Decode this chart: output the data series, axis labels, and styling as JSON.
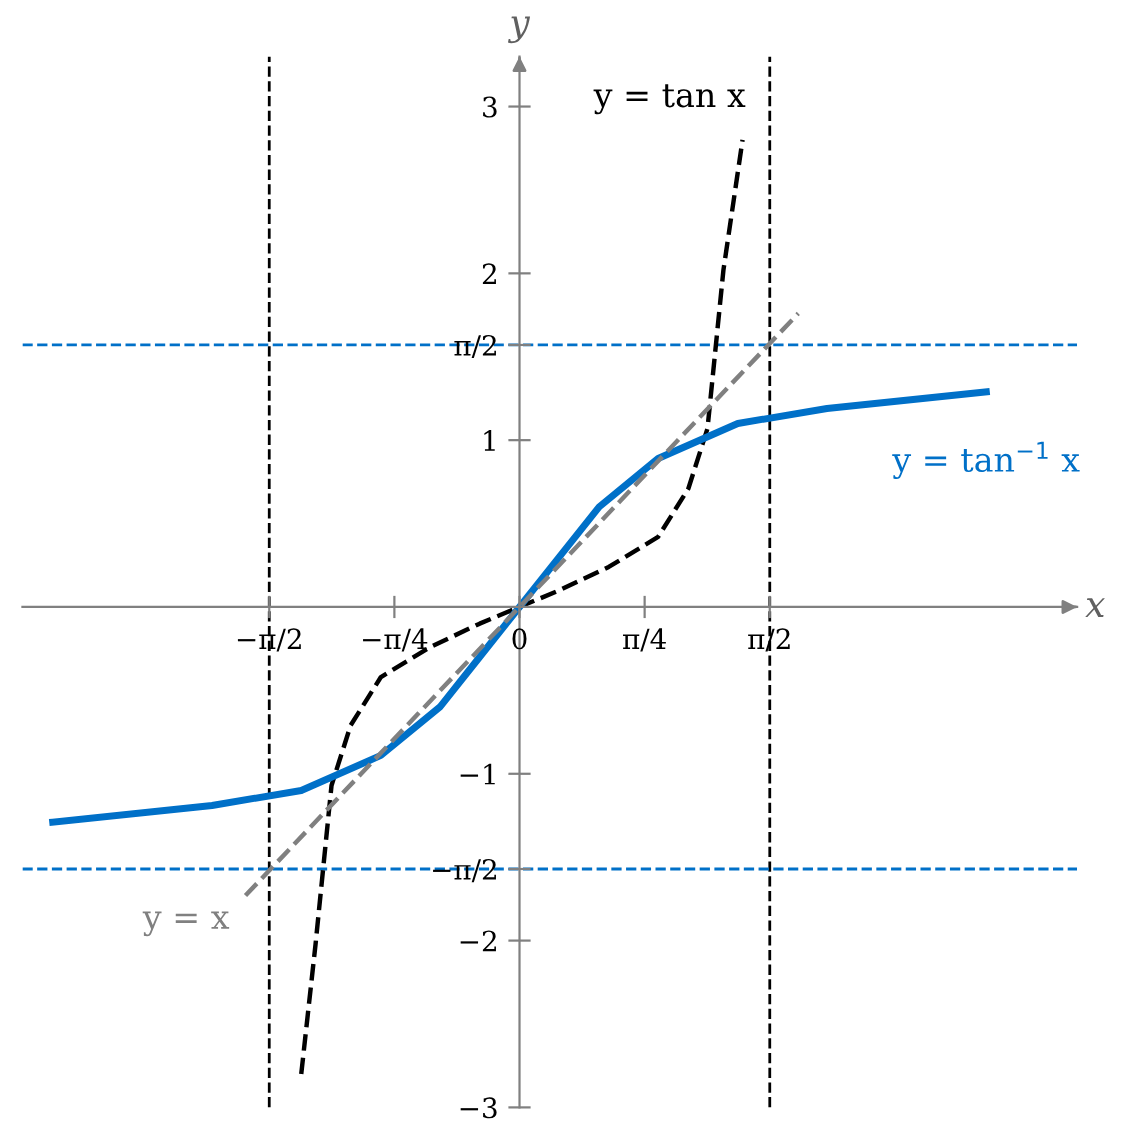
{
  "chart_data": {
    "type": "line",
    "xlabel": "x",
    "ylabel": "y",
    "xlim": [
      -3.12,
      3.5
    ],
    "ylim": [
      -3.0,
      3.3
    ],
    "xticks": [
      {
        "value": -1.5708,
        "label": "−π/2"
      },
      {
        "value": -0.7854,
        "label": "−π/4"
      },
      {
        "value": 0,
        "label": "0"
      },
      {
        "value": 0.7854,
        "label": "π/4"
      },
      {
        "value": 1.5708,
        "label": "π/2"
      }
    ],
    "yticks": [
      -3,
      -2,
      {
        "value": -1.5708,
        "label": "−π/2"
      },
      -1,
      1,
      {
        "value": 1.5708,
        "label": "π/2"
      },
      2,
      3
    ],
    "grid": false,
    "marker": "none",
    "series": [
      {
        "name": "y = tan x",
        "color": "#000000",
        "line_style": "dashed",
        "x": [
          -1.37,
          -1.28,
          -1.18,
          -1.06,
          -0.87,
          -0.56,
          -0.25,
          0,
          0.25,
          0.56,
          0.87,
          1.06,
          1.18,
          1.28,
          1.4
        ],
        "values": [
          -2.8,
          -2.02,
          -1.07,
          -0.71,
          -0.42,
          -0.24,
          -0.1,
          0,
          0.1,
          0.24,
          0.42,
          0.71,
          1.07,
          2.02,
          2.8
        ]
      },
      {
        "name": "y = tan$^{−1}$ x",
        "color": "#0070c8",
        "line_style": "solid",
        "x": [
          -2.93,
          -1.93,
          -1.37,
          -0.87,
          -0.5,
          -0.25,
          0,
          0.25,
          0.5,
          0.87,
          1.37,
          1.93,
          2.93
        ],
        "values": [
          -1.29,
          -1.19,
          -1.1,
          -0.89,
          -0.6,
          -0.3,
          0,
          0.3,
          0.6,
          0.89,
          1.1,
          1.19,
          1.29
        ]
      },
      {
        "name": "y = x",
        "color": "#808080",
        "line_style": "dashed",
        "x": [
          -1.72,
          1.75
        ],
        "values": [
          -1.73,
          1.76
        ]
      }
    ],
    "ref_lines": [
      {
        "axis": "x",
        "value": -1.5708,
        "color": "#000000",
        "line_style": "dashed"
      },
      {
        "axis": "x",
        "value": 1.5708,
        "color": "#000000",
        "line_style": "dashed"
      },
      {
        "axis": "y",
        "value": 1.5708,
        "color": "#0070c8",
        "line_style": "dashed"
      },
      {
        "axis": "y",
        "value": -1.5708,
        "color": "#0070c8",
        "line_style": "dashed"
      }
    ]
  }
}
